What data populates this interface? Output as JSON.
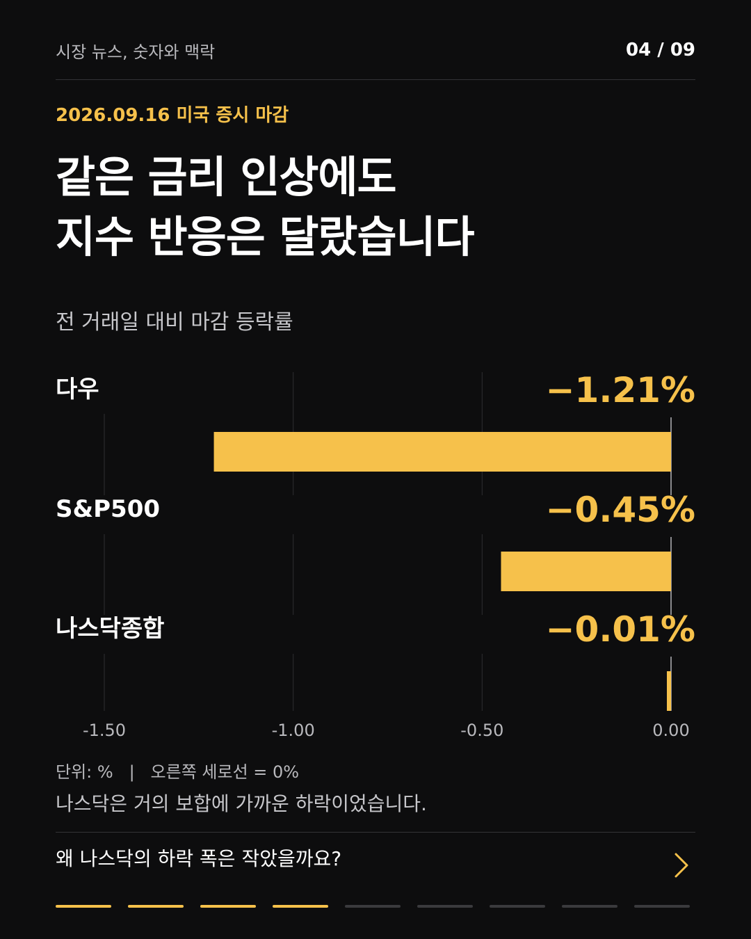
{
  "header": {
    "series_name": "시장 뉴스, 숫자와 맥락",
    "page_counter": "04 / 09"
  },
  "date_label": "2026.09.16 미국 증시 마감",
  "headline": {
    "line1": "같은 금리 인상에도",
    "line2": "지수 반응은 달랐습니다"
  },
  "chart_data": {
    "type": "bar",
    "orientation": "horizontal",
    "title": "전 거래일 대비 마감 등락률",
    "categories": [
      "다우",
      "S&P500",
      "나스닥종합"
    ],
    "values": [
      -1.21,
      -0.45,
      -0.01
    ],
    "value_labels": [
      "−1.21%",
      "−0.45%",
      "−0.01%"
    ],
    "xlim": [
      -1.5,
      0
    ],
    "ticks": [
      -1.5,
      -1.0,
      -0.5,
      0.0
    ],
    "tick_labels": [
      "-1.50",
      "-1.00",
      "-0.50",
      "0.00"
    ],
    "grid": true,
    "bar_color": "#f6c14b"
  },
  "unit_note": "단위: %   |   오른쪽 세로선 = 0%",
  "caption": "나스닥은 거의 보합에 가까운 하락이었습니다.",
  "next": {
    "question": "왜 나스닥의 하락 폭은 작았을까요?",
    "icon": "chevron-right-icon"
  },
  "progress": {
    "current": 4,
    "total": 9
  },
  "colors": {
    "background": "#0d0d0e",
    "accent": "#f6c14b",
    "text": "#ffffff",
    "muted": "#b9b9bd"
  }
}
